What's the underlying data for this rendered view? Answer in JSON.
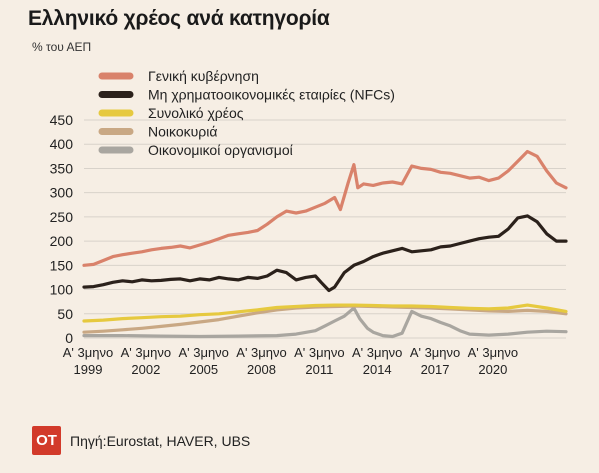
{
  "title": "Ελληνικό χρέος ανά κατηγορία",
  "subtitle": "% του ΑΕΠ",
  "source": "Πηγή:Eurostat, HAVER, UBS",
  "logo_text": "OT",
  "chart_data": {
    "type": "line",
    "ylim": [
      0,
      450
    ],
    "yticks": [
      0,
      50,
      100,
      150,
      200,
      250,
      300,
      350,
      400,
      450
    ],
    "xlim": [
      1999.0,
      2023.0
    ],
    "xticks": [
      {
        "line1": "Α' 3μηνο",
        "line2": "1999",
        "x": 1999.0
      },
      {
        "line1": "Α' 3μηνο",
        "line2": "2002",
        "x": 2002.0
      },
      {
        "line1": "Α' 3μηνο",
        "line2": "2005",
        "x": 2005.0
      },
      {
        "line1": "Α' 3μηνο",
        "line2": "2008",
        "x": 2008.0
      },
      {
        "line1": "Α' 3μηνο",
        "line2": "2011",
        "x": 2011.0
      },
      {
        "line1": "Α' 3μηνο",
        "line2": "2014",
        "x": 2014.0
      },
      {
        "line1": "Α' 3μηνο",
        "line2": "2017",
        "x": 2017.0
      },
      {
        "line1": "Α' 3μηνο",
        "line2": "2020",
        "x": 2020.0
      }
    ],
    "legend_position": "top-left",
    "series": [
      {
        "name": "Γενική κυβέρνηση",
        "color": "#d9826b",
        "points": [
          [
            1999.0,
            150
          ],
          [
            1999.5,
            152
          ],
          [
            2000.0,
            160
          ],
          [
            2000.5,
            168
          ],
          [
            2001.0,
            172
          ],
          [
            2001.5,
            175
          ],
          [
            2002.0,
            178
          ],
          [
            2002.5,
            182
          ],
          [
            2003.0,
            185
          ],
          [
            2003.5,
            187
          ],
          [
            2004.0,
            190
          ],
          [
            2004.5,
            186
          ],
          [
            2005.0,
            192
          ],
          [
            2005.5,
            198
          ],
          [
            2006.0,
            205
          ],
          [
            2006.5,
            212
          ],
          [
            2007.0,
            215
          ],
          [
            2007.5,
            218
          ],
          [
            2008.0,
            222
          ],
          [
            2008.5,
            235
          ],
          [
            2009.0,
            250
          ],
          [
            2009.5,
            262
          ],
          [
            2010.0,
            258
          ],
          [
            2010.5,
            262
          ],
          [
            2011.0,
            270
          ],
          [
            2011.5,
            278
          ],
          [
            2012.0,
            290
          ],
          [
            2012.3,
            265
          ],
          [
            2012.7,
            320
          ],
          [
            2013.0,
            358
          ],
          [
            2013.2,
            310
          ],
          [
            2013.5,
            318
          ],
          [
            2014.0,
            315
          ],
          [
            2014.5,
            320
          ],
          [
            2015.0,
            322
          ],
          [
            2015.5,
            318
          ],
          [
            2016.0,
            355
          ],
          [
            2016.5,
            350
          ],
          [
            2017.0,
            348
          ],
          [
            2017.5,
            342
          ],
          [
            2018.0,
            340
          ],
          [
            2018.5,
            335
          ],
          [
            2019.0,
            330
          ],
          [
            2019.5,
            332
          ],
          [
            2020.0,
            325
          ],
          [
            2020.5,
            330
          ],
          [
            2021.0,
            345
          ],
          [
            2021.5,
            365
          ],
          [
            2022.0,
            385
          ],
          [
            2022.5,
            375
          ],
          [
            2023.0,
            345
          ],
          [
            2023.5,
            320
          ],
          [
            2024.0,
            310
          ]
        ]
      },
      {
        "name": "Μη χρηματοοικονομικές εταιρίες (NFCs)",
        "color": "#2b211b",
        "points": [
          [
            1999.0,
            105
          ],
          [
            1999.5,
            106
          ],
          [
            2000.0,
            110
          ],
          [
            2000.5,
            115
          ],
          [
            2001.0,
            118
          ],
          [
            2001.5,
            116
          ],
          [
            2002.0,
            120
          ],
          [
            2002.5,
            118
          ],
          [
            2003.0,
            119
          ],
          [
            2003.5,
            121
          ],
          [
            2004.0,
            122
          ],
          [
            2004.5,
            118
          ],
          [
            2005.0,
            122
          ],
          [
            2005.5,
            120
          ],
          [
            2006.0,
            125
          ],
          [
            2006.5,
            122
          ],
          [
            2007.0,
            120
          ],
          [
            2007.5,
            125
          ],
          [
            2008.0,
            123
          ],
          [
            2008.5,
            128
          ],
          [
            2009.0,
            140
          ],
          [
            2009.5,
            135
          ],
          [
            2010.0,
            120
          ],
          [
            2010.5,
            125
          ],
          [
            2011.0,
            128
          ],
          [
            2011.3,
            115
          ],
          [
            2011.7,
            98
          ],
          [
            2012.0,
            105
          ],
          [
            2012.5,
            135
          ],
          [
            2013.0,
            150
          ],
          [
            2013.5,
            158
          ],
          [
            2014.0,
            168
          ],
          [
            2014.5,
            175
          ],
          [
            2015.0,
            180
          ],
          [
            2015.5,
            185
          ],
          [
            2016.0,
            178
          ],
          [
            2016.5,
            180
          ],
          [
            2017.0,
            182
          ],
          [
            2017.5,
            188
          ],
          [
            2018.0,
            190
          ],
          [
            2018.5,
            195
          ],
          [
            2019.0,
            200
          ],
          [
            2019.5,
            205
          ],
          [
            2020.0,
            208
          ],
          [
            2020.5,
            210
          ],
          [
            2021.0,
            225
          ],
          [
            2021.5,
            248
          ],
          [
            2022.0,
            252
          ],
          [
            2022.5,
            240
          ],
          [
            2023.0,
            215
          ],
          [
            2023.5,
            200
          ],
          [
            2024.0,
            200
          ]
        ]
      },
      {
        "name": "Συνολικό χρέος",
        "color": "#e6c93f",
        "points": [
          [
            1999.0,
            35
          ],
          [
            2000.0,
            37
          ],
          [
            2001.0,
            40
          ],
          [
            2002.0,
            42
          ],
          [
            2003.0,
            44
          ],
          [
            2004.0,
            45
          ],
          [
            2005.0,
            48
          ],
          [
            2006.0,
            50
          ],
          [
            2007.0,
            54
          ],
          [
            2008.0,
            58
          ],
          [
            2009.0,
            63
          ],
          [
            2010.0,
            65
          ],
          [
            2011.0,
            67
          ],
          [
            2012.0,
            68
          ],
          [
            2013.0,
            68
          ],
          [
            2014.0,
            67
          ],
          [
            2015.0,
            66
          ],
          [
            2016.0,
            66
          ],
          [
            2017.0,
            65
          ],
          [
            2018.0,
            63
          ],
          [
            2019.0,
            61
          ],
          [
            2020.0,
            60
          ],
          [
            2021.0,
            62
          ],
          [
            2022.0,
            68
          ],
          [
            2023.0,
            62
          ],
          [
            2024.0,
            55
          ]
        ]
      },
      {
        "name": "Νοικοκυριά",
        "color": "#c9a884",
        "points": [
          [
            1999.0,
            12
          ],
          [
            2000.0,
            14
          ],
          [
            2001.0,
            17
          ],
          [
            2002.0,
            20
          ],
          [
            2003.0,
            24
          ],
          [
            2004.0,
            28
          ],
          [
            2005.0,
            33
          ],
          [
            2006.0,
            38
          ],
          [
            2007.0,
            45
          ],
          [
            2008.0,
            52
          ],
          [
            2009.0,
            58
          ],
          [
            2010.0,
            62
          ],
          [
            2011.0,
            64
          ],
          [
            2012.0,
            65
          ],
          [
            2013.0,
            66
          ],
          [
            2014.0,
            65
          ],
          [
            2015.0,
            64
          ],
          [
            2016.0,
            63
          ],
          [
            2017.0,
            62
          ],
          [
            2018.0,
            60
          ],
          [
            2019.0,
            58
          ],
          [
            2020.0,
            56
          ],
          [
            2021.0,
            55
          ],
          [
            2022.0,
            57
          ],
          [
            2023.0,
            55
          ],
          [
            2024.0,
            50
          ]
        ]
      },
      {
        "name": "Οικονομικοί οργανισμοί",
        "color": "#a9a6a0",
        "points": [
          [
            1999.0,
            5
          ],
          [
            2001.0,
            5
          ],
          [
            2003.0,
            4
          ],
          [
            2005.0,
            3
          ],
          [
            2007.0,
            4
          ],
          [
            2009.0,
            5
          ],
          [
            2010.0,
            8
          ],
          [
            2011.0,
            15
          ],
          [
            2011.5,
            25
          ],
          [
            2012.0,
            35
          ],
          [
            2012.5,
            45
          ],
          [
            2013.0,
            62
          ],
          [
            2013.3,
            40
          ],
          [
            2013.7,
            20
          ],
          [
            2014.0,
            12
          ],
          [
            2014.5,
            5
          ],
          [
            2015.0,
            3
          ],
          [
            2015.5,
            10
          ],
          [
            2016.0,
            55
          ],
          [
            2016.5,
            45
          ],
          [
            2017.0,
            40
          ],
          [
            2017.5,
            32
          ],
          [
            2018.0,
            25
          ],
          [
            2018.5,
            15
          ],
          [
            2019.0,
            8
          ],
          [
            2020.0,
            6
          ],
          [
            2021.0,
            8
          ],
          [
            2022.0,
            12
          ],
          [
            2023.0,
            14
          ],
          [
            2024.0,
            13
          ]
        ]
      }
    ]
  }
}
